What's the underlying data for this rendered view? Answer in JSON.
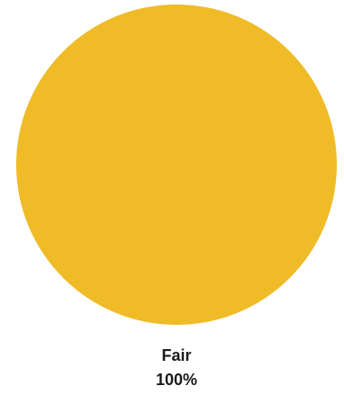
{
  "chart_data": {
    "type": "pie",
    "slices": [
      {
        "label": "Fair",
        "value": 100,
        "value_label": "100%",
        "color": "#EFBB27"
      }
    ]
  }
}
